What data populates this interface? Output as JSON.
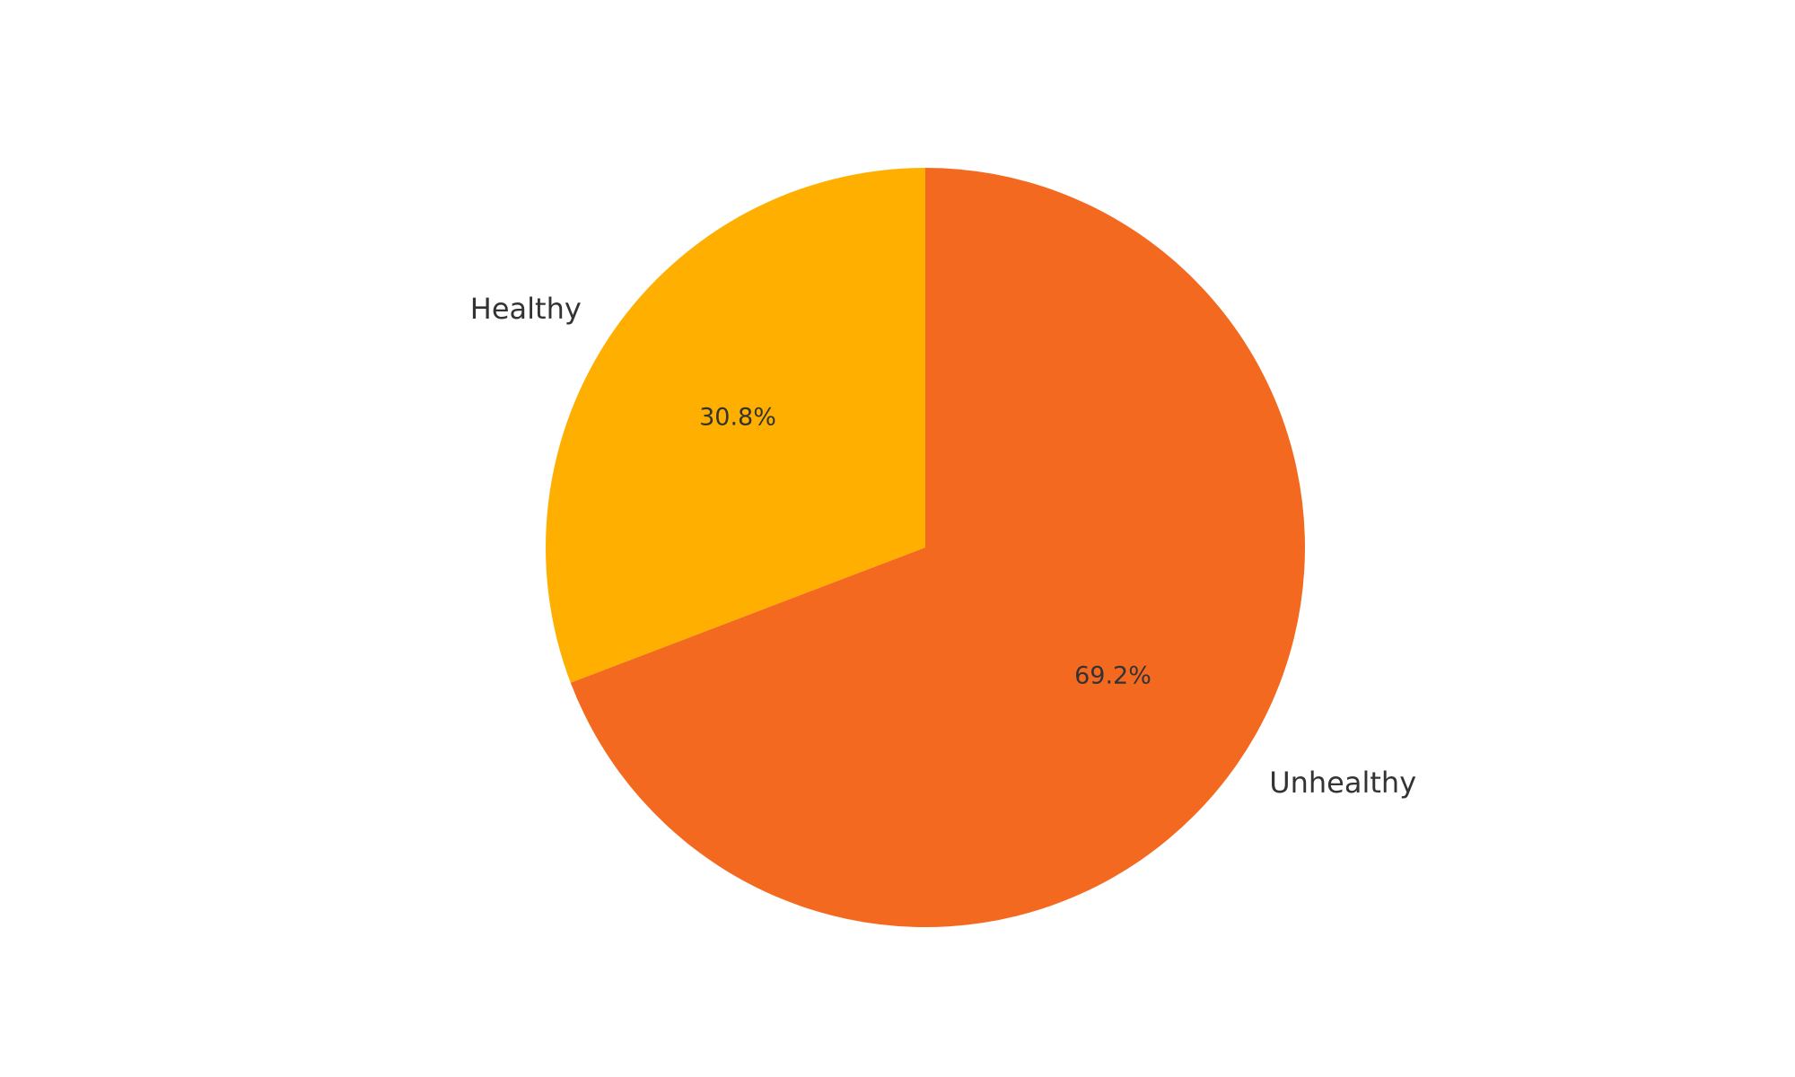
{
  "chart_data": {
    "type": "pie",
    "categories": [
      "Healthy",
      "Unhealthy"
    ],
    "values": [
      30.8,
      69.2
    ],
    "percent_labels": [
      "30.8%",
      "69.2%"
    ],
    "colors": [
      "#FFAF00",
      "#F46920"
    ],
    "title": "",
    "start_angle": "top (12 o'clock)",
    "direction": "counterclockwise",
    "legend": "none"
  }
}
